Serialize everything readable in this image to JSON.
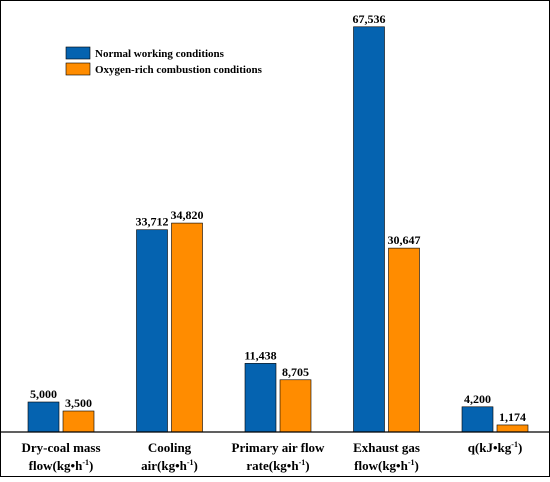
{
  "chart_data": {
    "type": "bar",
    "title": "",
    "xlabel": "",
    "ylabel": "",
    "ylim": [
      0,
      70000
    ],
    "grid": false,
    "legend_position": "top-left",
    "categories": [
      {
        "line1": "Dry-coal mass",
        "line2": "flow(kg•h",
        "sup": "-1",
        "tail": ")"
      },
      {
        "line1": "Cooling",
        "line2": "air(kg•h",
        "sup": "-1",
        "tail": ")"
      },
      {
        "line1": "Primary air flow",
        "line2": "rate(kg•h",
        "sup": "-1",
        "tail": ")"
      },
      {
        "line1": "Exhaust gas",
        "line2": "flow(kg•h",
        "sup": "-1",
        "tail": ")"
      },
      {
        "line1": "q(kJ•kg",
        "sup": "-1",
        "tail": ")",
        "line2": ""
      }
    ],
    "series": [
      {
        "name": "Normal working conditions",
        "color": "#0563b0",
        "values": [
          5000,
          33712,
          11438,
          67536,
          4200
        ],
        "labels": [
          "5,000",
          "33,712",
          "11,438",
          "67,536",
          "4,200"
        ]
      },
      {
        "name": "Oxygen-rich combustion conditions",
        "color": "#ff8c00",
        "values": [
          3500,
          34820,
          8705,
          30647,
          1174
        ],
        "labels": [
          "3,500",
          "34,820",
          "8,705",
          "30,647",
          "1,174"
        ]
      }
    ]
  }
}
